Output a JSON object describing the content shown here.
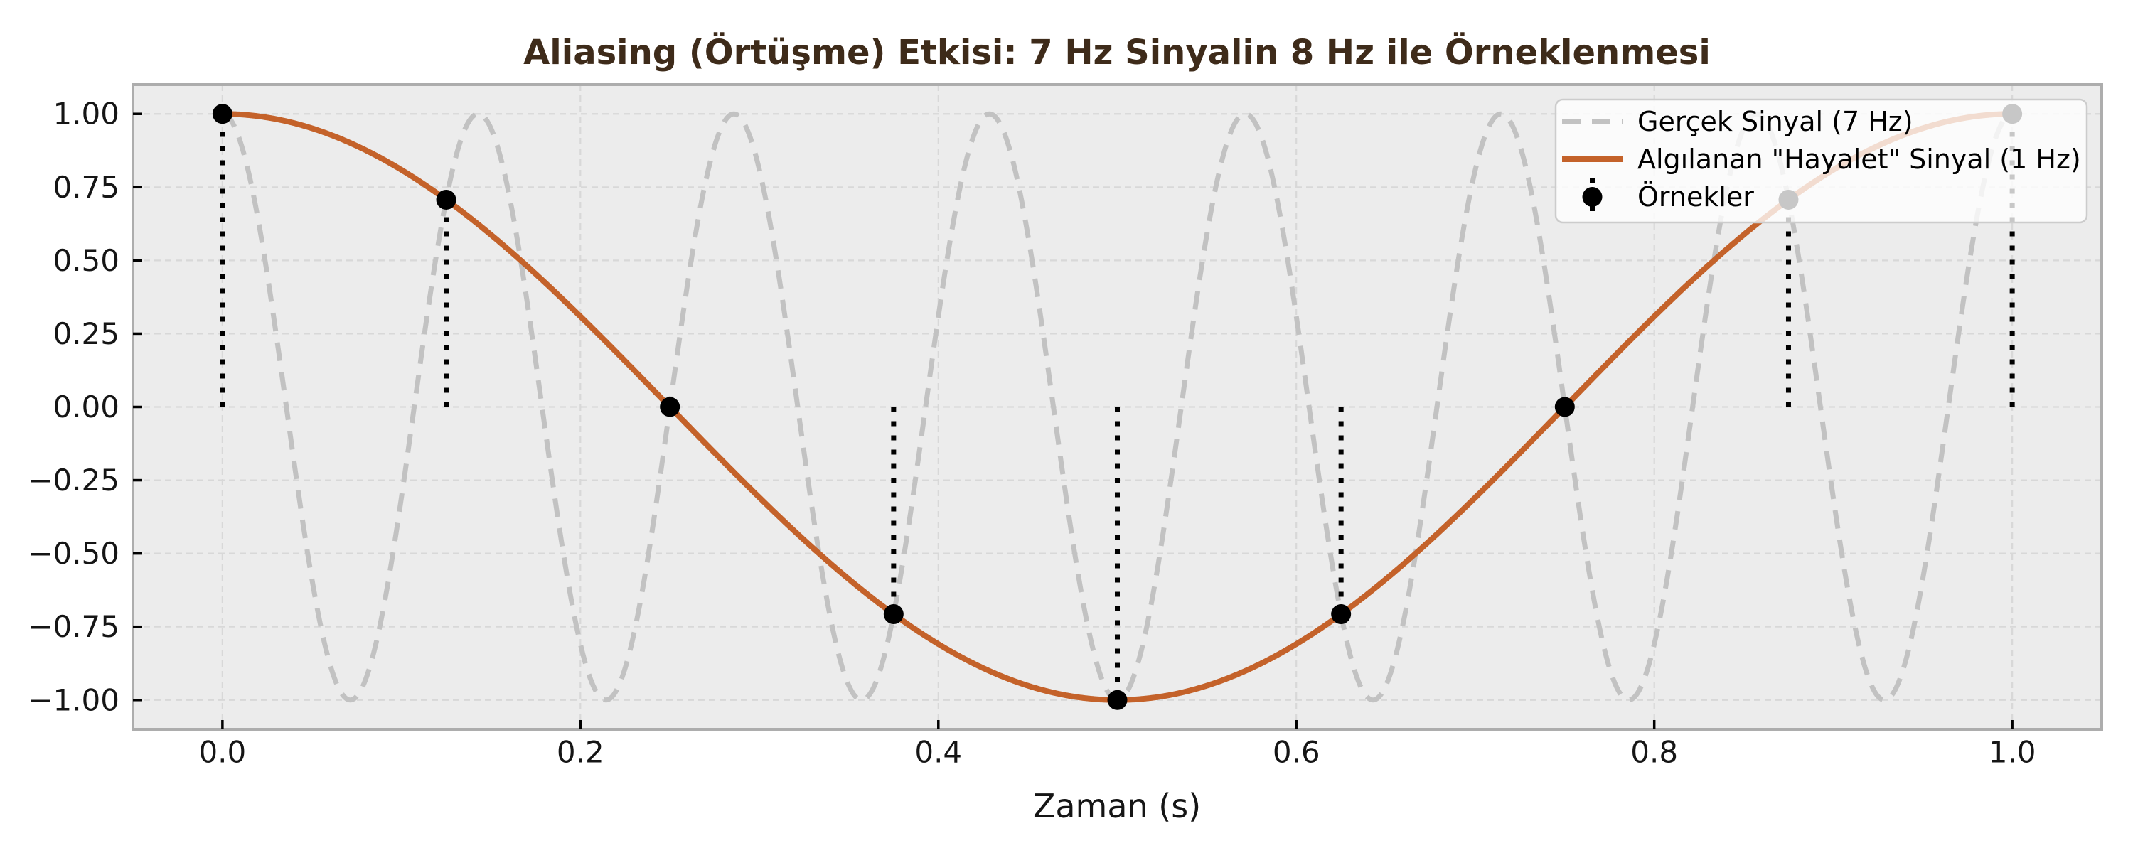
{
  "chart_data": {
    "type": "line",
    "title": "Aliasing (Örtüşme) Etkisi: 7 Hz Sinyalin 8 Hz ile Örneklenmesi",
    "xlabel": "Zaman (s)",
    "ylabel": "",
    "xlim": [
      -0.05,
      1.05
    ],
    "ylim": [
      -1.1,
      1.1
    ],
    "x_domain": [
      0.0,
      1.0
    ],
    "grid": true,
    "grid_style": "dashed",
    "legend_position": "upper right",
    "x_ticks": [
      0.0,
      0.2,
      0.4,
      0.6,
      0.8,
      1.0
    ],
    "x_tick_labels": [
      "0.0",
      "0.2",
      "0.4",
      "0.6",
      "0.8",
      "1.0"
    ],
    "y_ticks": [
      1.0,
      0.75,
      0.5,
      0.25,
      0.0,
      -0.25,
      -0.5,
      -0.75,
      -1.0
    ],
    "y_tick_labels": [
      "1.00",
      "0.75",
      "0.50",
      "0.25",
      "0.00",
      "−0.25",
      "−0.50",
      "−0.75",
      "−1.00"
    ],
    "series": [
      {
        "name": "Gerçek Sinyal (7 Hz)",
        "kind": "cosine",
        "frequency_hz": 7,
        "amplitude": 1.0,
        "color": "#c2c2c2",
        "line_style": "dashed",
        "line_width": 7
      },
      {
        "name": "Algılanan \"Hayalet\" Sinyal (1 Hz)",
        "kind": "cosine",
        "frequency_hz": 1,
        "amplitude": 1.0,
        "color": "#c4622a",
        "line_style": "solid",
        "line_width": 8
      },
      {
        "name": "Örnekler",
        "kind": "samples",
        "sampling_rate_hz": 8,
        "marker": "circle",
        "marker_radius": 14,
        "color": "#000000",
        "stem_style": "dotted",
        "x": [
          0.0,
          0.125,
          0.25,
          0.375,
          0.5,
          0.625,
          0.75,
          0.875,
          1.0
        ],
        "y": [
          1.0,
          0.7071,
          0.0,
          -0.7071,
          -1.0,
          -0.7071,
          0.0,
          0.7071,
          1.0
        ]
      }
    ]
  },
  "style": {
    "figure_bg": "#ffffff",
    "plot_bg": "#ececec",
    "grid_color": "#d8d8d8",
    "spine_color": "#adadad",
    "tick_color": "#000000",
    "tick_label_color": "#151515",
    "title_color": "#3e2b1a",
    "legend_bg": "#ffffff",
    "legend_bg_alpha": 0.78,
    "legend_border_color": "#cccccc"
  }
}
